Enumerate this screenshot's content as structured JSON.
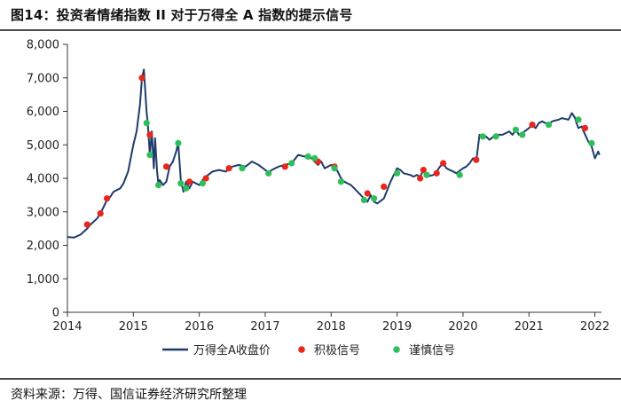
{
  "figure": {
    "title": "图14：投资者情绪指数 II 对于万得全 A 指数的提示信号",
    "source": "资料来源：万得、国信证券经济研究所整理"
  },
  "colors": {
    "line": "#1f3b6b",
    "positive": "#e8261c",
    "caution": "#2fbf5a",
    "axis": "#333333"
  },
  "chart_data": {
    "type": "line",
    "xlim": [
      2014.0,
      2022.1
    ],
    "ylim": [
      0,
      8000
    ],
    "x_ticks": [
      2014,
      2015,
      2016,
      2017,
      2018,
      2019,
      2020,
      2021,
      2022
    ],
    "x_tick_labels": [
      "2014",
      "2015",
      "2016",
      "2017",
      "2018",
      "2019",
      "2020",
      "2021",
      "2022"
    ],
    "y_ticks": [
      0,
      1000,
      2000,
      3000,
      4000,
      5000,
      6000,
      7000,
      8000
    ],
    "y_tick_labels": [
      "0",
      "1,000",
      "2,000",
      "3,000",
      "4,000",
      "5,000",
      "6,000",
      "7,000",
      "8,000"
    ],
    "legend": [
      "万得全A收盘价",
      "积极信号",
      "谨慎信号"
    ],
    "series": [
      {
        "name": "万得全A收盘价",
        "points": [
          [
            2014.0,
            2250
          ],
          [
            2014.1,
            2230
          ],
          [
            2014.2,
            2320
          ],
          [
            2014.3,
            2500
          ],
          [
            2014.35,
            2620
          ],
          [
            2014.45,
            2800
          ],
          [
            2014.5,
            2950
          ],
          [
            2014.6,
            3350
          ],
          [
            2014.65,
            3450
          ],
          [
            2014.7,
            3600
          ],
          [
            2014.8,
            3700
          ],
          [
            2014.85,
            3850
          ],
          [
            2014.92,
            4200
          ],
          [
            2015.0,
            5000
          ],
          [
            2015.05,
            5400
          ],
          [
            2015.1,
            6200
          ],
          [
            2015.13,
            7000
          ],
          [
            2015.16,
            7250
          ],
          [
            2015.2,
            6000
          ],
          [
            2015.22,
            5600
          ],
          [
            2015.25,
            4700
          ],
          [
            2015.28,
            5400
          ],
          [
            2015.31,
            4300
          ],
          [
            2015.33,
            5200
          ],
          [
            2015.36,
            4200
          ],
          [
            2015.38,
            3800
          ],
          [
            2015.4,
            3950
          ],
          [
            2015.45,
            3800
          ],
          [
            2015.5,
            3900
          ],
          [
            2015.55,
            4350
          ],
          [
            2015.6,
            4500
          ],
          [
            2015.65,
            4800
          ],
          [
            2015.68,
            5050
          ],
          [
            2015.72,
            3950
          ],
          [
            2015.76,
            3600
          ],
          [
            2015.8,
            3900
          ],
          [
            2015.85,
            3700
          ],
          [
            2015.9,
            3900
          ],
          [
            2016.0,
            3800
          ],
          [
            2016.05,
            3950
          ],
          [
            2016.1,
            4050
          ],
          [
            2016.2,
            4200
          ],
          [
            2016.3,
            4250
          ],
          [
            2016.4,
            4200
          ],
          [
            2016.5,
            4350
          ],
          [
            2016.6,
            4400
          ],
          [
            2016.7,
            4350
          ],
          [
            2016.8,
            4500
          ],
          [
            2016.9,
            4400
          ],
          [
            2017.0,
            4250
          ],
          [
            2017.05,
            4180
          ],
          [
            2017.1,
            4250
          ],
          [
            2017.2,
            4350
          ],
          [
            2017.3,
            4400
          ],
          [
            2017.4,
            4450
          ],
          [
            2017.5,
            4700
          ],
          [
            2017.6,
            4650
          ],
          [
            2017.65,
            4720
          ],
          [
            2017.7,
            4600
          ],
          [
            2017.8,
            4400
          ],
          [
            2017.85,
            4500
          ],
          [
            2017.9,
            4300
          ],
          [
            2018.0,
            4400
          ],
          [
            2018.05,
            4350
          ],
          [
            2018.1,
            4200
          ],
          [
            2018.15,
            4000
          ],
          [
            2018.2,
            3900
          ],
          [
            2018.3,
            3800
          ],
          [
            2018.35,
            3700
          ],
          [
            2018.45,
            3500
          ],
          [
            2018.5,
            3400
          ],
          [
            2018.55,
            3300
          ],
          [
            2018.6,
            3500
          ],
          [
            2018.65,
            3300
          ],
          [
            2018.7,
            3250
          ],
          [
            2018.8,
            3400
          ],
          [
            2018.85,
            3650
          ],
          [
            2018.9,
            3900
          ],
          [
            2018.95,
            4100
          ],
          [
            2019.0,
            4300
          ],
          [
            2019.05,
            4250
          ],
          [
            2019.1,
            4150
          ],
          [
            2019.2,
            4100
          ],
          [
            2019.25,
            4050
          ],
          [
            2019.3,
            4100
          ],
          [
            2019.35,
            4050
          ],
          [
            2019.4,
            4250
          ],
          [
            2019.45,
            4050
          ],
          [
            2019.55,
            4100
          ],
          [
            2019.6,
            4200
          ],
          [
            2019.65,
            4350
          ],
          [
            2019.7,
            4450
          ],
          [
            2019.75,
            4300
          ],
          [
            2019.8,
            4250
          ],
          [
            2019.9,
            4150
          ],
          [
            2020.0,
            4300
          ],
          [
            2020.05,
            4350
          ],
          [
            2020.1,
            4450
          ],
          [
            2020.15,
            4600
          ],
          [
            2020.2,
            4500
          ],
          [
            2020.25,
            5300
          ],
          [
            2020.3,
            5200
          ],
          [
            2020.35,
            5250
          ],
          [
            2020.4,
            5150
          ],
          [
            2020.5,
            5300
          ],
          [
            2020.6,
            5300
          ],
          [
            2020.7,
            5400
          ],
          [
            2020.75,
            5300
          ],
          [
            2020.8,
            5450
          ],
          [
            2020.85,
            5300
          ],
          [
            2020.9,
            5350
          ],
          [
            2021.0,
            5500
          ],
          [
            2021.05,
            5600
          ],
          [
            2021.1,
            5500
          ],
          [
            2021.15,
            5650
          ],
          [
            2021.2,
            5700
          ],
          [
            2021.3,
            5600
          ],
          [
            2021.35,
            5700
          ],
          [
            2021.45,
            5750
          ],
          [
            2021.5,
            5800
          ],
          [
            2021.6,
            5750
          ],
          [
            2021.65,
            5950
          ],
          [
            2021.7,
            5800
          ],
          [
            2021.72,
            5650
          ],
          [
            2021.75,
            5500
          ],
          [
            2021.8,
            5550
          ],
          [
            2021.83,
            5400
          ],
          [
            2021.9,
            5100
          ],
          [
            2021.95,
            4950
          ],
          [
            2022.0,
            4600
          ],
          [
            2022.05,
            4800
          ],
          [
            2022.07,
            4700
          ]
        ]
      },
      {
        "name": "积极信号",
        "points": [
          [
            2014.3,
            2620
          ],
          [
            2014.5,
            2950
          ],
          [
            2014.6,
            3400
          ],
          [
            2015.13,
            7000
          ],
          [
            2015.25,
            5300
          ],
          [
            2015.5,
            4350
          ],
          [
            2015.85,
            3900
          ],
          [
            2016.1,
            4000
          ],
          [
            2016.45,
            4300
          ],
          [
            2017.3,
            4350
          ],
          [
            2017.8,
            4500
          ],
          [
            2018.05,
            4350
          ],
          [
            2018.55,
            3550
          ],
          [
            2018.8,
            3750
          ],
          [
            2019.35,
            4000
          ],
          [
            2019.4,
            4250
          ],
          [
            2019.6,
            4150
          ],
          [
            2019.7,
            4450
          ],
          [
            2020.2,
            4550
          ],
          [
            2021.05,
            5600
          ],
          [
            2021.85,
            5500
          ]
        ]
      },
      {
        "name": "谨慎信号",
        "points": [
          [
            2015.2,
            5650
          ],
          [
            2015.25,
            4700
          ],
          [
            2015.38,
            3800
          ],
          [
            2015.68,
            5050
          ],
          [
            2015.72,
            3850
          ],
          [
            2015.8,
            3700
          ],
          [
            2016.05,
            3850
          ],
          [
            2016.65,
            4300
          ],
          [
            2017.05,
            4150
          ],
          [
            2017.4,
            4450
          ],
          [
            2017.65,
            4650
          ],
          [
            2017.75,
            4600
          ],
          [
            2018.05,
            4300
          ],
          [
            2018.15,
            3900
          ],
          [
            2018.5,
            3350
          ],
          [
            2018.65,
            3400
          ],
          [
            2019.0,
            4150
          ],
          [
            2019.45,
            4100
          ],
          [
            2019.95,
            4100
          ],
          [
            2020.3,
            5250
          ],
          [
            2020.5,
            5250
          ],
          [
            2020.8,
            5450
          ],
          [
            2020.9,
            5300
          ],
          [
            2021.3,
            5600
          ],
          [
            2021.75,
            5750
          ],
          [
            2021.95,
            5050
          ]
        ]
      }
    ]
  }
}
